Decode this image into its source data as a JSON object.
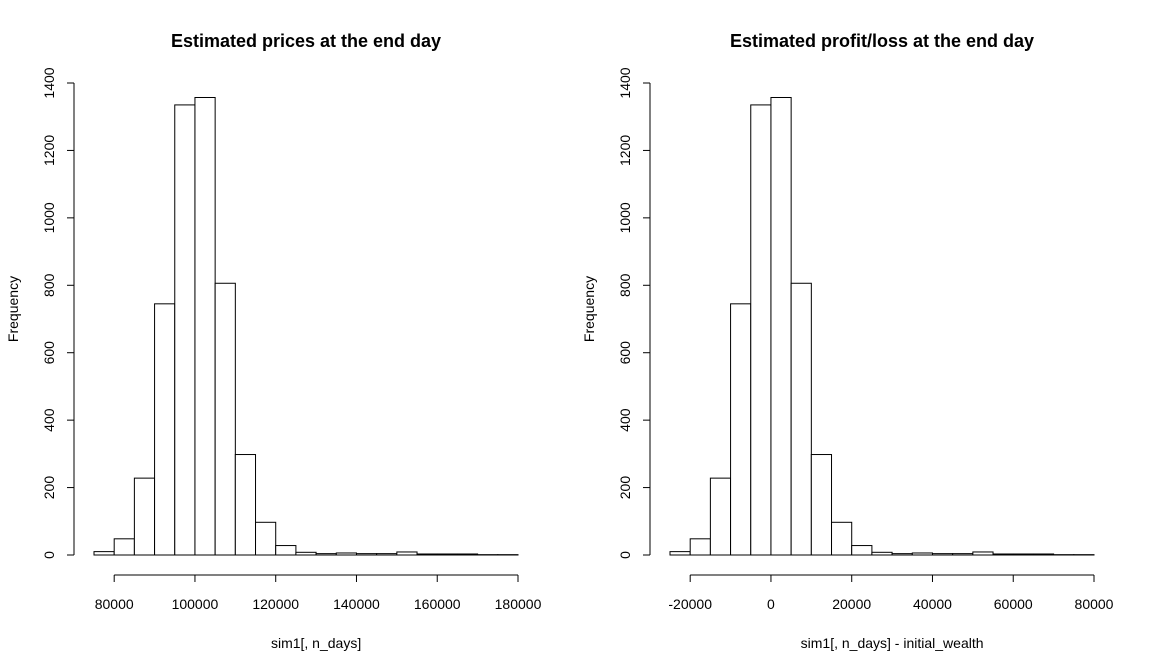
{
  "chart_data": [
    {
      "type": "bar",
      "title": "Estimated prices at the end day",
      "xlabel": "sim1[, n_days]",
      "ylabel": "Frequency",
      "bin_width": 5000,
      "bins_start": [
        75000,
        80000,
        85000,
        90000,
        95000,
        100000,
        105000,
        110000,
        115000,
        120000,
        125000,
        130000,
        135000,
        140000,
        145000,
        150000,
        155000,
        160000,
        165000,
        170000,
        175000
      ],
      "values": [
        10,
        48,
        228,
        745,
        1335,
        1357,
        806,
        298,
        97,
        28,
        8,
        4,
        6,
        4,
        4,
        9,
        3,
        3,
        3,
        1,
        1
      ],
      "xlim": [
        75000,
        180000
      ],
      "xticks": [
        80000,
        100000,
        120000,
        140000,
        160000,
        180000
      ],
      "xtick_labels": [
        "80000",
        "100000",
        "120000",
        "140000",
        "160000",
        "180000"
      ],
      "ylim": [
        0,
        1400
      ],
      "yticks": [
        0,
        200,
        400,
        600,
        800,
        1000,
        1200,
        1400
      ],
      "ytick_labels": [
        "0",
        "200",
        "400",
        "600",
        "800",
        "1000",
        "1200",
        "1400"
      ],
      "grid": false
    },
    {
      "type": "bar",
      "title": "Estimated profit/loss at the end day",
      "xlabel": "sim1[, n_days] - initial_wealth",
      "ylabel": "Frequency",
      "bin_width": 5000,
      "bins_start": [
        -25000,
        -20000,
        -15000,
        -10000,
        -5000,
        0,
        5000,
        10000,
        15000,
        20000,
        25000,
        30000,
        35000,
        40000,
        45000,
        50000,
        55000,
        60000,
        65000,
        70000,
        75000
      ],
      "values": [
        10,
        48,
        228,
        745,
        1335,
        1357,
        806,
        298,
        97,
        28,
        8,
        4,
        6,
        4,
        4,
        9,
        3,
        3,
        3,
        1,
        1
      ],
      "xlim": [
        -25000,
        80000
      ],
      "xticks": [
        -20000,
        0,
        20000,
        40000,
        60000,
        80000
      ],
      "xtick_labels": [
        "-20000",
        "0",
        "20000",
        "40000",
        "60000",
        "80000"
      ],
      "ylim": [
        0,
        1400
      ],
      "yticks": [
        0,
        200,
        400,
        600,
        800,
        1000,
        1200,
        1400
      ],
      "ytick_labels": [
        "0",
        "200",
        "400",
        "600",
        "800",
        "1000",
        "1200",
        "1400"
      ],
      "grid": false
    }
  ]
}
